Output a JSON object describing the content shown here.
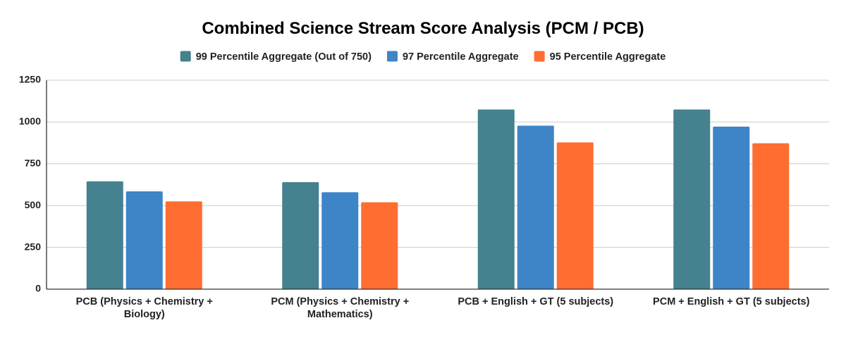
{
  "chart_data": {
    "type": "bar",
    "title": "Combined Science Stream Score Analysis (PCM / PCB)",
    "xlabel": "",
    "ylabel": "",
    "ylim": [
      0,
      1250
    ],
    "yticks": [
      0,
      250,
      500,
      750,
      1000,
      1250
    ],
    "grid": true,
    "legend_position": "top",
    "categories": [
      [
        "PCB (Physics + Chemistry +",
        "Biology)"
      ],
      [
        "PCM (Physics + Chemistry +",
        "Mathematics)"
      ],
      [
        "PCB + English + GT (5 subjects)"
      ],
      [
        "PCM + English + GT (5 subjects)"
      ]
    ],
    "series": [
      {
        "name": "99 Percentile Aggregate (Out of 750)",
        "color": "#45818e",
        "values": [
          645,
          640,
          1075,
          1075
        ]
      },
      {
        "name": "97 Percentile Aggregate",
        "color": "#3d85c6",
        "values": [
          585,
          580,
          978,
          972
        ]
      },
      {
        "name": "95 Percentile Aggregate",
        "color": "#ff6d31",
        "values": [
          525,
          520,
          878,
          873
        ]
      }
    ]
  }
}
